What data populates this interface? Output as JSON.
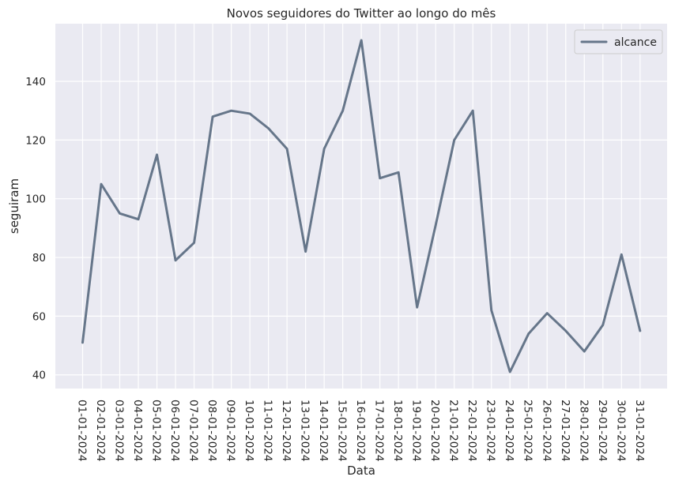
{
  "chart_data": {
    "type": "line",
    "title": "Novos seguidores do Twitter ao longo do mês",
    "xlabel": "Data",
    "ylabel": "seguiram",
    "categories": [
      "01-01-2024",
      "02-01-2024",
      "03-01-2024",
      "04-01-2024",
      "05-01-2024",
      "06-01-2024",
      "07-01-2024",
      "08-01-2024",
      "09-01-2024",
      "10-01-2024",
      "11-01-2024",
      "12-01-2024",
      "13-01-2024",
      "14-01-2024",
      "15-01-2024",
      "16-01-2024",
      "17-01-2024",
      "18-01-2024",
      "19-01-2024",
      "20-01-2024",
      "21-01-2024",
      "22-01-2024",
      "23-01-2024",
      "24-01-2024",
      "25-01-2024",
      "26-01-2024",
      "27-01-2024",
      "28-01-2024",
      "29-01-2024",
      "30-01-2024",
      "31-01-2024"
    ],
    "series": [
      {
        "name": "alcance",
        "color": "#66768a",
        "values": [
          51,
          105,
          95,
          93,
          115,
          79,
          85,
          128,
          130,
          129,
          124,
          117,
          82,
          117,
          130,
          154,
          107,
          109,
          63,
          91,
          120,
          130,
          62,
          41,
          54,
          61,
          55,
          48,
          57,
          81,
          55
        ]
      }
    ],
    "ylim": [
      35.35,
      159.65
    ],
    "yticks": [
      40,
      60,
      80,
      100,
      120,
      140
    ],
    "grid": true,
    "legend": "top-right",
    "colors": {
      "background": "#eaeaf2",
      "grid": "#ffffff",
      "text": "#262626"
    }
  }
}
